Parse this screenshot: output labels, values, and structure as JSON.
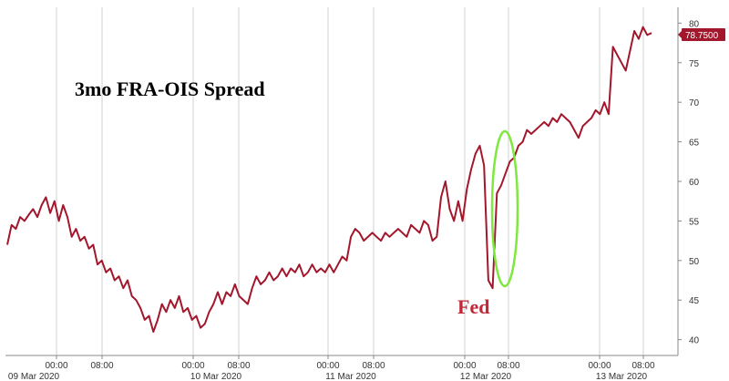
{
  "chart_data": {
    "type": "line",
    "title": "3mo FRA-OIS Spread",
    "xlabel": "",
    "ylabel": "",
    "ylim": [
      38,
      82
    ],
    "y_ticks": [
      40,
      45,
      50,
      55,
      60,
      65,
      70,
      75,
      80
    ],
    "grid": "vertical",
    "x_tick_times": [
      "00:00",
      "08:00",
      "00:00",
      "08:00",
      "00:00",
      "08:00",
      "00:00",
      "08:00",
      "00:00",
      "08:00"
    ],
    "x_tick_dates": [
      "09 Mar 2020",
      "10 Mar 2020",
      "11 Mar 2020",
      "12 Mar 2020",
      "13 Mar 2020"
    ],
    "last_value_label": "78.7500",
    "annotation": "Fed",
    "series": [
      {
        "values": [
          52.0,
          54.5,
          54.0,
          55.5,
          55.0,
          55.8,
          56.5,
          55.5,
          57.0,
          58.0,
          56.0,
          57.5,
          55.0,
          57.0,
          55.5,
          53.0,
          54.0,
          52.5,
          53.0,
          51.5,
          52.0,
          49.5,
          50.0,
          48.5,
          49.0,
          47.5,
          48.0,
          46.5,
          47.5,
          45.5,
          45.0,
          44.0,
          42.5,
          43.0,
          41.0,
          42.5,
          44.5,
          43.5,
          45.0,
          44.0,
          45.5,
          43.5,
          44.0,
          42.5,
          43.0,
          41.5,
          42.0,
          43.5,
          44.5,
          46.0,
          44.5,
          46.0,
          45.5,
          47.0,
          45.5,
          45.0,
          44.5,
          46.5,
          48.0,
          47.0,
          47.5,
          48.5,
          47.5,
          48.0,
          49.0,
          48.0,
          49.0,
          48.5,
          49.5,
          48.0,
          48.5,
          49.5,
          48.5,
          49.0,
          48.5,
          49.5,
          48.5,
          49.5,
          50.5,
          50.0,
          53.0,
          54.0,
          53.5,
          52.5,
          53.0,
          53.5,
          53.0,
          52.5,
          53.5,
          53.0,
          53.5,
          54.0,
          53.5,
          53.0,
          54.5,
          54.0,
          53.5,
          55.0,
          54.5,
          52.5,
          53.0,
          58.0,
          60.0,
          56.5,
          55.0,
          57.5,
          55.0,
          59.0,
          61.5,
          63.5,
          64.5,
          62.0,
          47.5,
          46.5,
          58.5,
          59.5,
          61.0,
          62.5,
          63.0,
          64.5,
          65.0,
          66.5,
          66.0,
          66.5,
          67.0,
          67.5,
          67.0,
          68.0,
          67.5,
          68.5,
          68.0,
          67.5,
          66.5,
          65.5,
          67.0,
          67.5,
          68.0,
          69.0,
          68.5,
          70.0,
          68.5,
          77.0,
          76.0,
          75.0,
          74.0,
          76.5,
          79.0,
          78.0,
          79.5,
          78.5,
          78.75
        ]
      }
    ],
    "colors": {
      "line": "#a3172c",
      "price_box": "#a3172c",
      "annotation": "#c0283a",
      "ellipse": "#7ee83f",
      "grid": "#d0d0d0",
      "axis": "#888888"
    }
  }
}
